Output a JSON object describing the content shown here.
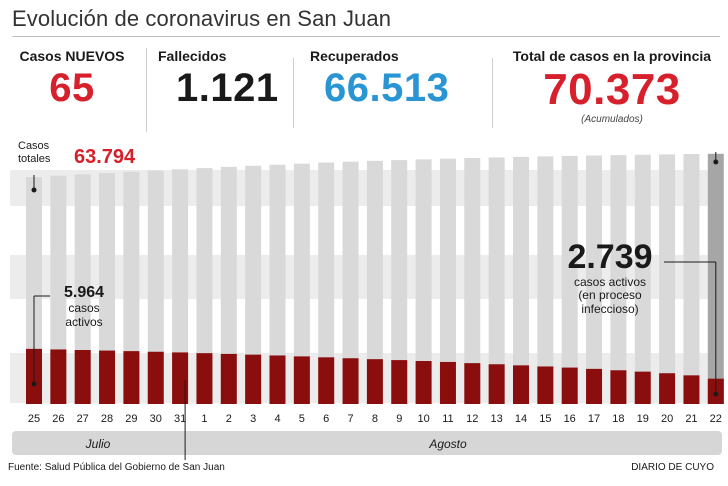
{
  "header": {
    "title": "Evolución de coronavirus en San Juan"
  },
  "stats": {
    "new_cases": {
      "label": "Casos NUEVOS",
      "value": "65",
      "color": "#d6202b"
    },
    "deaths": {
      "label": "Fallecidos",
      "value": "1.121",
      "color": "#1a1a1a"
    },
    "recovered": {
      "label": "Recuperados",
      "value": "66.513",
      "color": "#2a95d3"
    },
    "total": {
      "label": "Total de casos en la provincia",
      "value": "70.373",
      "note": "(Acumulados)",
      "color": "#d6202b"
    }
  },
  "annotations": {
    "casos_totales_label_1": "Casos",
    "casos_totales_label_2": "totales",
    "casos_totales_value": "63.794",
    "start_active_value": "5.964",
    "start_active_line1": "casos",
    "start_active_line2": "activos",
    "end_active_value": "2.739",
    "end_active_line1": "casos activos",
    "end_active_line2": "(en proceso",
    "end_active_line3": "infeccioso)"
  },
  "months": {
    "july": "Julio",
    "august": "Agosto"
  },
  "footer": {
    "source": "Fuente: Salud Pública del Gobierno de San Juan",
    "brand": "DIARIO DE CUYO"
  },
  "colors": {
    "bar_total": "#d9d9d9",
    "bar_total_last": "#a6a6a6",
    "bar_active": "#8b0e0e",
    "bands": "#ececec",
    "month_strip": "#d6d6d6"
  },
  "chart_data": {
    "type": "bar",
    "categories": [
      "25",
      "26",
      "27",
      "28",
      "29",
      "30",
      "31",
      "1",
      "2",
      "3",
      "4",
      "5",
      "6",
      "7",
      "8",
      "9",
      "10",
      "11",
      "12",
      "13",
      "14",
      "15",
      "16",
      "17",
      "18",
      "19",
      "20",
      "21",
      "22"
    ],
    "series": [
      {
        "name": "Casos totales",
        "values": [
          63794,
          64200,
          64600,
          64950,
          65300,
          65650,
          66000,
          66350,
          66700,
          67000,
          67300,
          67600,
          67900,
          68150,
          68400,
          68600,
          68800,
          69000,
          69200,
          69350,
          69500,
          69650,
          69780,
          69900,
          70000,
          70100,
          70200,
          70300,
          70373
        ]
      },
      {
        "name": "casos activos",
        "values": [
          5964,
          5900,
          5840,
          5780,
          5720,
          5650,
          5580,
          5500,
          5420,
          5340,
          5250,
          5150,
          5050,
          4950,
          4850,
          4750,
          4650,
          4550,
          4420,
          4300,
          4180,
          4060,
          3940,
          3800,
          3650,
          3500,
          3330,
          3100,
          2739
        ]
      }
    ],
    "xlabel": "",
    "ylabel": "",
    "ylim": [
      0,
      72000
    ]
  }
}
